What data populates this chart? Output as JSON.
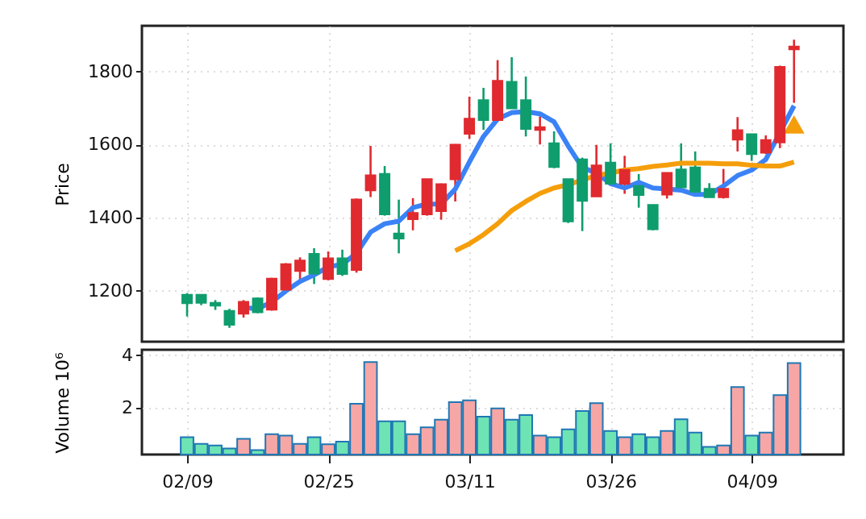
{
  "chart_data": [
    {
      "type": "candlestick",
      "ylabel": "Price",
      "grid": true,
      "ylim": [
        1060,
        1925
      ],
      "yticks": [
        1200,
        1400,
        1600,
        1800
      ],
      "categories": [
        null,
        null,
        null,
        null,
        null,
        null,
        null,
        null,
        null,
        null,
        null,
        null,
        null,
        null,
        null,
        null,
        null,
        null,
        null,
        null,
        null,
        null,
        null,
        null,
        null,
        null,
        null,
        null,
        null,
        null,
        null,
        null,
        null,
        null,
        null,
        null,
        null,
        null,
        null,
        null,
        null,
        null,
        null,
        null
      ],
      "ohlc": [
        [
          1188,
          1193,
          1129,
          1166
        ],
        [
          1188,
          1190,
          1160,
          1167
        ],
        [
          1166,
          1174,
          1147,
          1159
        ],
        [
          1144,
          1150,
          1098,
          1107
        ],
        [
          1137,
          1174,
          1126,
          1169
        ],
        [
          1178,
          1181,
          1138,
          1141
        ],
        [
          1148,
          1235,
          1145,
          1232
        ],
        [
          1203,
          1275,
          1200,
          1272
        ],
        [
          1254,
          1291,
          1228,
          1282
        ],
        [
          1300,
          1316,
          1218,
          1247
        ],
        [
          1232,
          1307,
          1228,
          1288
        ],
        [
          1288,
          1312,
          1240,
          1246
        ],
        [
          1257,
          1452,
          1249,
          1449
        ],
        [
          1475,
          1596,
          1456,
          1515
        ],
        [
          1519,
          1541,
          1405,
          1409
        ],
        [
          1356,
          1449,
          1302,
          1343
        ],
        [
          1396,
          1453,
          1365,
          1412
        ],
        [
          1409,
          1505,
          1405,
          1505
        ],
        [
          1418,
          1493,
          1394,
          1491
        ],
        [
          1505,
          1601,
          1444,
          1599
        ],
        [
          1630,
          1731,
          1615,
          1670
        ],
        [
          1721,
          1755,
          1640,
          1667
        ],
        [
          1667,
          1831,
          1662,
          1774
        ],
        [
          1771,
          1839,
          1699,
          1699
        ],
        [
          1721,
          1786,
          1622,
          1643
        ],
        [
          1640,
          1677,
          1600,
          1647
        ],
        [
          1603,
          1636,
          1535,
          1539
        ],
        [
          1505,
          1505,
          1385,
          1390
        ],
        [
          1559,
          1564,
          1363,
          1446
        ],
        [
          1458,
          1599,
          1458,
          1542
        ],
        [
          1550,
          1603,
          1490,
          1493
        ],
        [
          1493,
          1569,
          1465,
          1530
        ],
        [
          1486,
          1519,
          1427,
          1462
        ],
        [
          1434,
          1434,
          1365,
          1368
        ],
        [
          1463,
          1522,
          1452,
          1522
        ],
        [
          1531,
          1603,
          1481,
          1483
        ],
        [
          1537,
          1581,
          1468,
          1471
        ],
        [
          1478,
          1494,
          1456,
          1456
        ],
        [
          1456,
          1533,
          1452,
          1478
        ],
        [
          1614,
          1675,
          1581,
          1639
        ],
        [
          1628,
          1628,
          1555,
          1574
        ],
        [
          1578,
          1625,
          1574,
          1612
        ],
        [
          1606,
          1816,
          1590,
          1812
        ],
        [
          1861,
          1887,
          1714,
          1868
        ]
      ],
      "colors": [
        "#0f9d6e",
        "#0f9d6e",
        "#0f9d6e",
        "#0f9d6e",
        "#e02a2f",
        "#0f9d6e",
        "#e02a2f",
        "#e02a2f",
        "#e02a2f",
        "#0f9d6e",
        "#e02a2f",
        "#0f9d6e",
        "#e02a2f",
        "#e02a2f",
        "#0f9d6e",
        "#0f9d6e",
        "#e02a2f",
        "#e02a2f",
        "#e02a2f",
        "#e02a2f",
        "#e02a2f",
        "#0f9d6e",
        "#e02a2f",
        "#0f9d6e",
        "#0f9d6e",
        "#e02a2f",
        "#0f9d6e",
        "#0f9d6e",
        "#0f9d6e",
        "#e02a2f",
        "#0f9d6e",
        "#e02a2f",
        "#0f9d6e",
        "#0f9d6e",
        "#e02a2f",
        "#0f9d6e",
        "#0f9d6e",
        "#0f9d6e",
        "#e02a2f",
        "#e02a2f",
        "#0f9d6e",
        "#e02a2f",
        "#e02a2f",
        "#e02a2f"
      ],
      "series": [
        {
          "type": "line",
          "color": "#3b82f6",
          "values": [
            null,
            null,
            null,
            null,
            1154,
            1150,
            1169,
            1199,
            1225,
            1243,
            1265,
            1272,
            1302,
            1360,
            1383,
            1390,
            1427,
            1437,
            1437,
            1478,
            1552,
            1622,
            1670,
            1687,
            1690,
            1684,
            1662,
            1596,
            1537,
            1522,
            1493,
            1481,
            1496,
            1481,
            1478,
            1475,
            1463,
            1463,
            1486,
            1515,
            1530,
            1559,
            1633,
            1706
          ]
        },
        {
          "type": "line",
          "color": "#f59e0b",
          "values": [
            null,
            null,
            null,
            null,
            null,
            null,
            null,
            null,
            null,
            null,
            null,
            null,
            null,
            null,
            null,
            null,
            null,
            null,
            null,
            1309,
            1328,
            1353,
            1383,
            1419,
            1444,
            1466,
            1481,
            1490,
            1503,
            1515,
            1522,
            1530,
            1534,
            1540,
            1544,
            1549,
            1549,
            1549,
            1547,
            1547,
            1543,
            1541,
            1541,
            1552
          ]
        },
        {
          "type": "scatter",
          "marker": "triangle",
          "color": "#f59e0b",
          "values": [
            null,
            null,
            null,
            null,
            null,
            null,
            null,
            null,
            null,
            null,
            null,
            null,
            null,
            null,
            null,
            null,
            null,
            null,
            null,
            null,
            null,
            null,
            null,
            null,
            null,
            null,
            null,
            null,
            null,
            null,
            null,
            null,
            null,
            null,
            null,
            null,
            null,
            null,
            null,
            null,
            null,
            null,
            null,
            1655
          ]
        }
      ]
    },
    {
      "type": "bar",
      "ylabel": "Volume  10⁶",
      "grid": true,
      "ylim": [
        0.2,
        4.2
      ],
      "yticks": [
        2,
        4
      ],
      "categories": [
        "02/09",
        null,
        null,
        null,
        null,
        null,
        null,
        null,
        null,
        null,
        "02/25",
        null,
        null,
        null,
        null,
        null,
        null,
        null,
        null,
        null,
        "03/11",
        null,
        null,
        null,
        null,
        null,
        null,
        null,
        null,
        null,
        "03/26",
        null,
        null,
        null,
        null,
        null,
        null,
        null,
        null,
        null,
        "04/09",
        null,
        null,
        null
      ],
      "values": [
        0.86,
        0.61,
        0.55,
        0.43,
        0.8,
        0.37,
        0.98,
        0.92,
        0.61,
        0.86,
        0.59,
        0.69,
        2.14,
        3.73,
        1.47,
        1.47,
        0.98,
        1.24,
        1.53,
        2.2,
        2.27,
        1.65,
        1.96,
        1.53,
        1.71,
        0.92,
        0.86,
        1.16,
        1.86,
        2.16,
        1.1,
        0.86,
        0.98,
        0.86,
        1.1,
        1.55,
        1.04,
        0.49,
        0.55,
        2.78,
        0.92,
        1.04,
        2.47,
        3.69
      ],
      "colors": [
        "#6ee3b4",
        "#6ee3b4",
        "#6ee3b4",
        "#6ee3b4",
        "#f7a6a6",
        "#6ee3b4",
        "#f7a6a6",
        "#f7a6a6",
        "#f7a6a6",
        "#6ee3b4",
        "#f7a6a6",
        "#6ee3b4",
        "#f7a6a6",
        "#f7a6a6",
        "#6ee3b4",
        "#6ee3b4",
        "#f7a6a6",
        "#f7a6a6",
        "#f7a6a6",
        "#f7a6a6",
        "#f7a6a6",
        "#6ee3b4",
        "#f7a6a6",
        "#6ee3b4",
        "#6ee3b4",
        "#f7a6a6",
        "#6ee3b4",
        "#6ee3b4",
        "#6ee3b4",
        "#f7a6a6",
        "#6ee3b4",
        "#f7a6a6",
        "#6ee3b4",
        "#6ee3b4",
        "#f7a6a6",
        "#6ee3b4",
        "#6ee3b4",
        "#6ee3b4",
        "#f7a6a6",
        "#f7a6a6",
        "#6ee3b4",
        "#f7a6a6",
        "#f7a6a6",
        "#f7a6a6"
      ]
    }
  ]
}
